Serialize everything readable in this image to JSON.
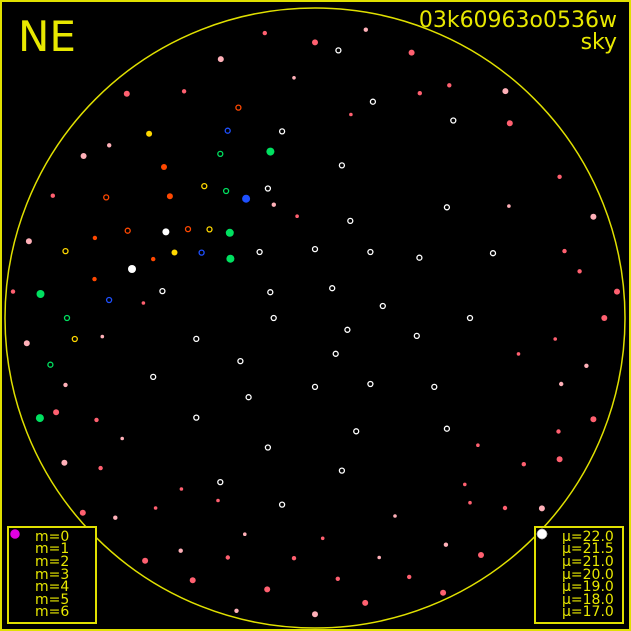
{
  "header": {
    "direction": "NE",
    "image_id": "03k60963o0536w",
    "subtitle": "sky"
  },
  "colors": {
    "frame": "#e0e000",
    "text": "#e8e800",
    "mu_22.0": "#1e50ff",
    "mu_21.5": "#00e060",
    "mu_21.0": "#ffd800",
    "mu_20.0": "#ff4800",
    "mu_19.0": "#ff6070",
    "mu_18.0": "#ffb0b8",
    "mu_17.0": "#ffffff",
    "magnitude_symbol": "#e000e0"
  },
  "legend_m": {
    "items": [
      {
        "label": "m=0"
      },
      {
        "label": "m=1"
      },
      {
        "label": "m=2"
      },
      {
        "label": "m=3"
      },
      {
        "label": "m=4"
      },
      {
        "label": "m=5"
      },
      {
        "label": "m=6"
      }
    ]
  },
  "legend_mu": {
    "items": [
      {
        "label": "μ=22.0",
        "mu": 22.0
      },
      {
        "label": "μ=21.5",
        "mu": 21.5
      },
      {
        "label": "μ=21.0",
        "mu": 21.0
      },
      {
        "label": "μ=20.0",
        "mu": 20.0
      },
      {
        "label": "μ=19.0",
        "mu": 19.0
      },
      {
        "label": "μ=18.0",
        "mu": 18.0
      },
      {
        "label": "μ=17.0",
        "mu": 17.0
      }
    ]
  },
  "chart_data": {
    "type": "scatter",
    "projection": "all-sky polar (azimuth deg, zenith distance deg)",
    "zd_range": [
      0,
      90
    ],
    "points_columns": [
      "az",
      "zd",
      "mu",
      "m"
    ],
    "points": [
      [
        0,
        20,
        17,
        0
      ],
      [
        20,
        30,
        17,
        0
      ],
      [
        40,
        25,
        17,
        0
      ],
      [
        60,
        35,
        17,
        0
      ],
      [
        80,
        20,
        17,
        0
      ],
      [
        100,
        30,
        17,
        0
      ],
      [
        120,
        40,
        17,
        0
      ],
      [
        140,
        25,
        17,
        0
      ],
      [
        160,
        35,
        17,
        0
      ],
      [
        180,
        20,
        17,
        0
      ],
      [
        200,
        40,
        17,
        0
      ],
      [
        220,
        30,
        17,
        0
      ],
      [
        240,
        25,
        17,
        0
      ],
      [
        260,
        35,
        17,
        0
      ],
      [
        280,
        45,
        17,
        0
      ],
      [
        300,
        15,
        17,
        0
      ],
      [
        320,
        25,
        17,
        0
      ],
      [
        340,
        40,
        17,
        0
      ],
      [
        10,
        45,
        17,
        0
      ],
      [
        50,
        50,
        17,
        0
      ],
      [
        90,
        45,
        17,
        0
      ],
      [
        130,
        50,
        17,
        0
      ],
      [
        170,
        45,
        17,
        0
      ],
      [
        210,
        55,
        17,
        0
      ],
      [
        250,
        50,
        17,
        0
      ],
      [
        30,
        10,
        17,
        0
      ],
      [
        150,
        12,
        17,
        0
      ],
      [
        270,
        12,
        17,
        0
      ],
      [
        350,
        55,
        17,
        0
      ],
      [
        70,
        55,
        17,
        0
      ],
      [
        110,
        10,
        17,
        0
      ],
      [
        190,
        55,
        17,
        0
      ],
      [
        230,
        45,
        17,
        0
      ],
      [
        15,
        65,
        17,
        0
      ],
      [
        35,
        70,
        17,
        0
      ],
      [
        5,
        78,
        17,
        0
      ],
      [
        300,
        50,
        17,
        2
      ],
      [
        285,
        55,
        17,
        1
      ],
      [
        305,
        45,
        20,
        0
      ],
      [
        310,
        55,
        20,
        3
      ],
      [
        295,
        60,
        20,
        0
      ],
      [
        290,
        68,
        20,
        4
      ],
      [
        315,
        62,
        20,
        3
      ],
      [
        300,
        70,
        20,
        0
      ],
      [
        280,
        65,
        20,
        4
      ],
      [
        320,
        50,
        21,
        0
      ],
      [
        310,
        40,
        21,
        0
      ],
      [
        295,
        45,
        21,
        3
      ],
      [
        285,
        75,
        21,
        0
      ],
      [
        325,
        45,
        21.5,
        0
      ],
      [
        330,
        55,
        21.5,
        0
      ],
      [
        270,
        72,
        21.5,
        0
      ],
      [
        260,
        78,
        21.5,
        0
      ],
      [
        300,
        38,
        22,
        0
      ],
      [
        275,
        60,
        22,
        0
      ],
      [
        335,
        60,
        22,
        0
      ],
      [
        340,
        65,
        20,
        0
      ],
      [
        318,
        72,
        21,
        3
      ],
      [
        290,
        50,
        20,
        4
      ],
      [
        265,
        70,
        21,
        0
      ],
      [
        315,
        35,
        21.5,
        1
      ],
      [
        330,
        40,
        22,
        1
      ],
      [
        345,
        50,
        21.5,
        1
      ],
      [
        275,
        80,
        21.5,
        1
      ],
      [
        250,
        85,
        21.5,
        1
      ],
      [
        305,
        30,
        21.5,
        1
      ],
      [
        0,
        80,
        19,
        3
      ],
      [
        10,
        85,
        18,
        4
      ],
      [
        20,
        82,
        19,
        3
      ],
      [
        30,
        78,
        19,
        4
      ],
      [
        40,
        86,
        18,
        3
      ],
      [
        350,
        84,
        19,
        4
      ],
      [
        340,
        80,
        18,
        3
      ],
      [
        330,
        76,
        19,
        4
      ],
      [
        320,
        85,
        19,
        3
      ],
      [
        355,
        70,
        18,
        5
      ],
      [
        25,
        72,
        19,
        4
      ],
      [
        45,
        80,
        19,
        3
      ],
      [
        60,
        82,
        19,
        4
      ],
      [
        70,
        86,
        18,
        3
      ],
      [
        80,
        78,
        19,
        4
      ],
      [
        90,
        84,
        19,
        3
      ],
      [
        100,
        80,
        18,
        4
      ],
      [
        110,
        86,
        19,
        3
      ],
      [
        95,
        70,
        19,
        5
      ],
      [
        105,
        74,
        18,
        4
      ],
      [
        115,
        78,
        19,
        4
      ],
      [
        85,
        88,
        19,
        3
      ],
      [
        120,
        82,
        19,
        3
      ],
      [
        125,
        74,
        19,
        4
      ],
      [
        130,
        86,
        18,
        3
      ],
      [
        135,
        78,
        19,
        4
      ],
      [
        140,
        70,
        19,
        5
      ],
      [
        145,
        84,
        19,
        3
      ],
      [
        150,
        76,
        18,
        4
      ],
      [
        155,
        88,
        19,
        3
      ],
      [
        160,
        80,
        19,
        4
      ],
      [
        165,
        72,
        18,
        5
      ],
      [
        170,
        84,
        19,
        3
      ],
      [
        175,
        76,
        19,
        4
      ],
      [
        180,
        86,
        18,
        3
      ],
      [
        185,
        70,
        19,
        4
      ],
      [
        190,
        80,
        19,
        3
      ],
      [
        195,
        88,
        18,
        4
      ],
      [
        200,
        74,
        19,
        4
      ],
      [
        205,
        84,
        19,
        3
      ],
      [
        210,
        78,
        18,
        4
      ],
      [
        215,
        86,
        19,
        3
      ],
      [
        220,
        72,
        19,
        5
      ],
      [
        225,
        82,
        18,
        4
      ],
      [
        230,
        88,
        19,
        3
      ],
      [
        235,
        76,
        19,
        4
      ],
      [
        240,
        84,
        18,
        3
      ],
      [
        245,
        70,
        19,
        4
      ],
      [
        250,
        80,
        19,
        3
      ],
      [
        255,
        75,
        18,
        4
      ],
      [
        138,
        65,
        19,
        5
      ],
      [
        158,
        62,
        18,
        5
      ],
      [
        178,
        64,
        19,
        5
      ],
      [
        198,
        66,
        18,
        5
      ],
      [
        218,
        63,
        19,
        5
      ],
      [
        238,
        66,
        18,
        5
      ],
      [
        128,
        60,
        19,
        5
      ],
      [
        208,
        60,
        19,
        5
      ],
      [
        265,
        84,
        18,
        3
      ],
      [
        275,
        88,
        19,
        4
      ],
      [
        285,
        86,
        18,
        3
      ],
      [
        295,
        84,
        19,
        4
      ],
      [
        305,
        82,
        18,
        3
      ],
      [
        265,
        62,
        18,
        5
      ],
      [
        275,
        50,
        19,
        5
      ],
      [
        310,
        78,
        18,
        4
      ],
      [
        340,
        35,
        18,
        4
      ],
      [
        350,
        30,
        19,
        5
      ],
      [
        10,
        60,
        19,
        5
      ],
      [
        60,
        65,
        18,
        5
      ],
      [
        75,
        75,
        19,
        4
      ],
      [
        100,
        60,
        19,
        5
      ]
    ]
  }
}
